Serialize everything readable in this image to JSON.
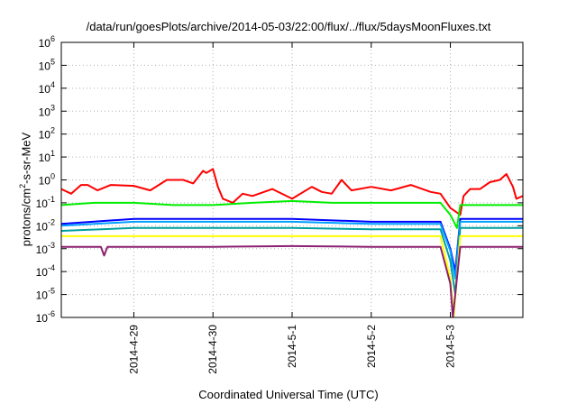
{
  "chart_data": {
    "type": "line",
    "title": "/data/run/goesPlots/archive/2014-05-03/22:00/flux/../flux/5daysMoonFluxes.txt",
    "xlabel": "Coordinated Universal Time (UTC)",
    "ylabel_main": "protons/cm",
    "ylabel_sup": "2",
    "ylabel_rest": "-s-sr-MeV",
    "y_scale": "log",
    "ylim": [
      1e-06,
      1000000.0
    ],
    "y_ticks": [
      {
        "base": "10",
        "exp": "-6"
      },
      {
        "base": "10",
        "exp": "-5"
      },
      {
        "base": "10",
        "exp": "-4"
      },
      {
        "base": "10",
        "exp": "-3"
      },
      {
        "base": "10",
        "exp": "-2"
      },
      {
        "base": "10",
        "exp": "-1"
      },
      {
        "base": "10",
        "exp": "0"
      },
      {
        "base": "10",
        "exp": "1"
      },
      {
        "base": "10",
        "exp": "2"
      },
      {
        "base": "10",
        "exp": "3"
      },
      {
        "base": "10",
        "exp": "4"
      },
      {
        "base": "10",
        "exp": "5"
      },
      {
        "base": "10",
        "exp": "6"
      }
    ],
    "xlim": [
      "2014-04-28 02:00",
      "2014-05-03 22:00"
    ],
    "x_ticks": [
      "2014-4-29",
      "2014-4-30",
      "2014-5-1",
      "2014-5-2",
      "2014-5-3"
    ],
    "grid": true,
    "legend": "none",
    "colors": [
      "#ff0000",
      "#00ee00",
      "#0000ff",
      "#00a0ff",
      "#009f9f",
      "#ffff00",
      "#8b2070"
    ],
    "series": [
      {
        "color": "#ff0000",
        "points": [
          [
            "2014-04-28 02:00",
            0.4
          ],
          [
            "2014-04-28 05:00",
            0.25
          ],
          [
            "2014-04-28 08:00",
            0.6
          ],
          [
            "2014-04-28 10:00",
            0.6
          ],
          [
            "2014-04-28 13:00",
            0.35
          ],
          [
            "2014-04-28 17:00",
            0.6
          ],
          [
            "2014-04-29 00:00",
            0.55
          ],
          [
            "2014-04-29 05:00",
            0.35
          ],
          [
            "2014-04-29 10:00",
            1.0
          ],
          [
            "2014-04-29 15:00",
            1.0
          ],
          [
            "2014-04-29 18:00",
            0.7
          ],
          [
            "2014-04-29 21:00",
            2.5
          ],
          [
            "2014-04-29 22:00",
            2.0
          ],
          [
            "2014-04-30 00:00",
            3.0
          ],
          [
            "2014-04-30 01:30",
            0.5
          ],
          [
            "2014-04-30 03:00",
            0.15
          ],
          [
            "2014-04-30 06:00",
            0.1
          ],
          [
            "2014-04-30 09:00",
            0.25
          ],
          [
            "2014-04-30 12:00",
            0.2
          ],
          [
            "2014-04-30 18:00",
            0.4
          ],
          [
            "2014-05-01 00:00",
            0.15
          ],
          [
            "2014-05-01 06:00",
            0.5
          ],
          [
            "2014-05-01 09:00",
            0.3
          ],
          [
            "2014-05-01 12:00",
            0.25
          ],
          [
            "2014-05-01 15:00",
            1.0
          ],
          [
            "2014-05-01 18:00",
            0.35
          ],
          [
            "2014-05-02 00:00",
            0.5
          ],
          [
            "2014-05-02 06:00",
            0.35
          ],
          [
            "2014-05-02 12:00",
            0.6
          ],
          [
            "2014-05-02 18:00",
            0.3
          ],
          [
            "2014-05-02 21:00",
            0.25
          ],
          [
            "2014-05-03 00:00",
            0.06
          ],
          [
            "2014-05-03 03:00",
            0.03
          ],
          [
            "2014-05-03 04:00",
            0.2
          ],
          [
            "2014-05-03 06:00",
            0.4
          ],
          [
            "2014-05-03 09:00",
            0.4
          ],
          [
            "2014-05-03 12:00",
            0.8
          ],
          [
            "2014-05-03 15:00",
            1.0
          ],
          [
            "2014-05-03 17:00",
            1.8
          ],
          [
            "2014-05-03 19:00",
            0.5
          ],
          [
            "2014-05-03 20:00",
            0.15
          ],
          [
            "2014-05-03 22:00",
            0.2
          ]
        ]
      },
      {
        "color": "#00ee00",
        "points": [
          [
            "2014-04-28 02:00",
            0.08
          ],
          [
            "2014-04-28 12:00",
            0.1
          ],
          [
            "2014-04-29 00:00",
            0.1
          ],
          [
            "2014-04-29 12:00",
            0.08
          ],
          [
            "2014-04-30 00:00",
            0.08
          ],
          [
            "2014-04-30 12:00",
            0.1
          ],
          [
            "2014-05-01 00:00",
            0.12
          ],
          [
            "2014-05-01 12:00",
            0.1
          ],
          [
            "2014-05-02 00:00",
            0.1
          ],
          [
            "2014-05-02 12:00",
            0.1
          ],
          [
            "2014-05-02 21:00",
            0.1
          ],
          [
            "2014-05-03 00:00",
            0.03
          ],
          [
            "2014-05-03 02:00",
            0.008
          ],
          [
            "2014-05-03 03:00",
            0.08
          ],
          [
            "2014-05-03 12:00",
            0.08
          ],
          [
            "2014-05-03 22:00",
            0.08
          ]
        ]
      },
      {
        "color": "#0000ff",
        "points": [
          [
            "2014-04-28 02:00",
            0.012
          ],
          [
            "2014-04-29 00:00",
            0.02
          ],
          [
            "2014-04-30 00:00",
            0.02
          ],
          [
            "2014-05-01 00:00",
            0.02
          ],
          [
            "2014-05-02 00:00",
            0.015
          ],
          [
            "2014-05-02 21:00",
            0.015
          ],
          [
            "2014-05-03 00:00",
            0.001
          ],
          [
            "2014-05-03 01:30",
            0.0001
          ],
          [
            "2014-05-03 03:00",
            0.02
          ],
          [
            "2014-05-03 12:00",
            0.02
          ],
          [
            "2014-05-03 22:00",
            0.02
          ]
        ]
      },
      {
        "color": "#00a0ff",
        "points": [
          [
            "2014-04-28 02:00",
            0.01
          ],
          [
            "2014-04-29 00:00",
            0.015
          ],
          [
            "2014-04-30 00:00",
            0.015
          ],
          [
            "2014-05-01 00:00",
            0.015
          ],
          [
            "2014-05-02 00:00",
            0.012
          ],
          [
            "2014-05-02 21:00",
            0.012
          ],
          [
            "2014-05-03 00:00",
            0.0008
          ],
          [
            "2014-05-03 01:30",
            5e-05
          ],
          [
            "2014-05-03 03:00",
            0.015
          ],
          [
            "2014-05-03 12:00",
            0.015
          ],
          [
            "2014-05-03 22:00",
            0.015
          ]
        ]
      },
      {
        "color": "#009f9f",
        "points": [
          [
            "2014-04-28 02:00",
            0.006
          ],
          [
            "2014-04-29 00:00",
            0.008
          ],
          [
            "2014-04-30 00:00",
            0.008
          ],
          [
            "2014-05-01 00:00",
            0.008
          ],
          [
            "2014-05-02 00:00",
            0.007
          ],
          [
            "2014-05-02 21:00",
            0.007
          ],
          [
            "2014-05-03 00:00",
            0.0003
          ],
          [
            "2014-05-03 01:30",
            1e-05
          ],
          [
            "2014-05-03 03:00",
            0.008
          ],
          [
            "2014-05-03 12:00",
            0.008
          ],
          [
            "2014-05-03 22:00",
            0.008
          ]
        ]
      },
      {
        "color": "#ffff00",
        "points": [
          [
            "2014-04-28 02:00",
            0.0035
          ],
          [
            "2014-04-29 00:00",
            0.0035
          ],
          [
            "2014-04-30 00:00",
            0.0035
          ],
          [
            "2014-05-01 00:00",
            0.0035
          ],
          [
            "2014-05-02 00:00",
            0.0035
          ],
          [
            "2014-05-02 21:00",
            0.0035
          ],
          [
            "2014-05-03 00:00",
            5e-05
          ],
          [
            "2014-05-03 01:00",
            1e-06
          ],
          [
            "2014-05-03 03:00",
            0.0035
          ],
          [
            "2014-05-03 12:00",
            0.0035
          ],
          [
            "2014-05-03 22:00",
            0.0035
          ]
        ]
      },
      {
        "color": "#8b2070",
        "points": [
          [
            "2014-04-28 02:00",
            0.0012
          ],
          [
            "2014-04-28 14:00",
            0.0012
          ],
          [
            "2014-04-28 15:00",
            0.0005
          ],
          [
            "2014-04-28 16:00",
            0.0012
          ],
          [
            "2014-04-29 00:00",
            0.0012
          ],
          [
            "2014-04-30 00:00",
            0.0012
          ],
          [
            "2014-05-01 00:00",
            0.0013
          ],
          [
            "2014-05-02 00:00",
            0.0012
          ],
          [
            "2014-05-02 21:00",
            0.0012
          ],
          [
            "2014-05-03 00:00",
            3e-05
          ],
          [
            "2014-05-03 00:45",
            1e-06
          ],
          [
            "2014-05-03 03:00",
            0.0012
          ],
          [
            "2014-05-03 12:00",
            0.0012
          ],
          [
            "2014-05-03 22:00",
            0.0012
          ]
        ]
      }
    ]
  }
}
